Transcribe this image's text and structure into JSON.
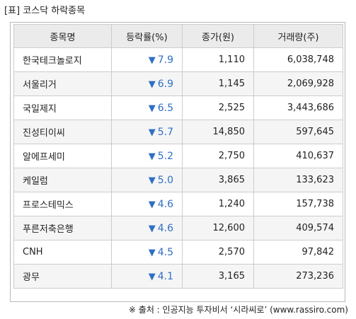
{
  "caption": "[표] 코스닥 하락종목",
  "table": {
    "headers": {
      "name": "종목명",
      "rate": "등락률(%)",
      "price": "종가(원)",
      "volume": "거래량(주)"
    },
    "down_arrow_icon": "down-triangle",
    "down_color": "#2f6fc5",
    "rows": [
      {
        "name": "한국테크놀로지",
        "rate": "7.9",
        "price": "1,110",
        "volume": "6,038,748"
      },
      {
        "name": "서울리거",
        "rate": "6.9",
        "price": "1,145",
        "volume": "2,069,928"
      },
      {
        "name": "국일제지",
        "rate": "6.5",
        "price": "2,525",
        "volume": "3,443,686"
      },
      {
        "name": "진성티이씨",
        "rate": "5.7",
        "price": "14,850",
        "volume": "597,645"
      },
      {
        "name": "알에프세미",
        "rate": "5.2",
        "price": "2,750",
        "volume": "410,637"
      },
      {
        "name": "케일럼",
        "rate": "5.0",
        "price": "3,865",
        "volume": "133,623"
      },
      {
        "name": "프로스테믹스",
        "rate": "4.6",
        "price": "1,240",
        "volume": "157,738"
      },
      {
        "name": "푸른저축은행",
        "rate": "4.6",
        "price": "12,600",
        "volume": "409,574"
      },
      {
        "name": "CNH",
        "rate": "4.5",
        "price": "2,570",
        "volume": "97,842"
      },
      {
        "name": "광무",
        "rate": "4.1",
        "price": "3,165",
        "volume": "273,236"
      }
    ]
  },
  "source": "※ 출처 : 인공지능 투자비서 ‘시라씨로’ (www.rassiro.com)"
}
